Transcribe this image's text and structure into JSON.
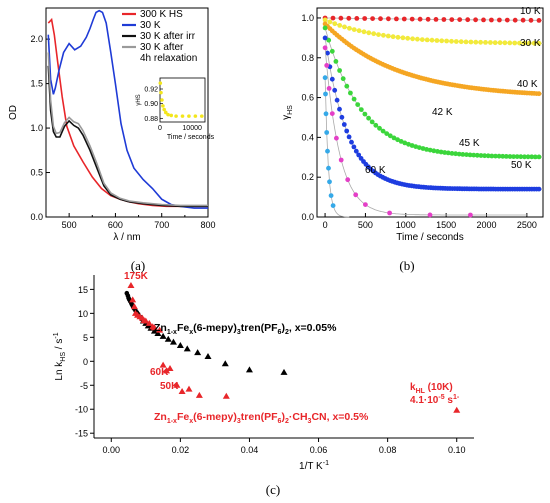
{
  "chart_data": [
    {
      "panel": "(a)",
      "type": "line",
      "xlabel": "λ / nm",
      "ylabel": "OD",
      "xlim": [
        450,
        800
      ],
      "ylim": [
        0,
        2.35
      ],
      "xticks": [
        "500",
        "600",
        "700",
        "800"
      ],
      "yticks": [
        "0.0",
        "0.5",
        "1.0",
        "1.5",
        "2.0"
      ],
      "legend_position": "top-right",
      "series": [
        {
          "name": "300 K HS",
          "color": "#e8262a",
          "x": [
            455,
            462,
            468,
            475,
            485,
            495,
            510,
            530,
            550,
            570,
            590,
            610,
            630,
            650,
            680,
            710,
            740,
            770,
            800
          ],
          "y": [
            2.18,
            2.22,
            2.05,
            1.75,
            1.35,
            1.02,
            0.8,
            0.62,
            0.45,
            0.32,
            0.24,
            0.2,
            0.17,
            0.15,
            0.13,
            0.12,
            0.12,
            0.12,
            0.12
          ]
        },
        {
          "name": "30 K",
          "color": "#1f3bd6",
          "x": [
            455,
            460,
            466,
            470,
            478,
            488,
            500,
            512,
            525,
            537,
            545,
            552,
            558,
            565,
            572,
            580,
            590,
            600,
            612,
            625,
            640,
            660,
            680,
            700,
            720,
            740,
            770,
            800
          ],
          "y": [
            2.05,
            1.55,
            1.38,
            1.45,
            1.65,
            1.85,
            1.95,
            1.88,
            1.92,
            2.02,
            2.12,
            2.22,
            2.3,
            2.32,
            2.3,
            2.18,
            1.85,
            1.5,
            1.05,
            0.75,
            0.55,
            0.42,
            0.32,
            0.2,
            0.14,
            0.12,
            0.1,
            0.1
          ]
        },
        {
          "name": "30 K after irr",
          "color": "#111111",
          "x": [
            455,
            460,
            466,
            472,
            480,
            490,
            500,
            510,
            520,
            530,
            545,
            560,
            575,
            590,
            610,
            630,
            660,
            700,
            740,
            800
          ],
          "y": [
            1.7,
            1.2,
            0.96,
            0.9,
            0.9,
            1.02,
            1.08,
            1.03,
            1.0,
            0.92,
            0.75,
            0.55,
            0.35,
            0.25,
            0.2,
            0.17,
            0.15,
            0.13,
            0.12,
            0.12
          ]
        },
        {
          "name": "30 K after 4h relaxation",
          "color": "#9a9a9a",
          "x": [
            455,
            460,
            466,
            472,
            480,
            490,
            500,
            510,
            520,
            530,
            545,
            560,
            575,
            590,
            610,
            630,
            660,
            700,
            740,
            800
          ],
          "y": [
            1.85,
            1.32,
            1.02,
            0.94,
            0.95,
            1.06,
            1.12,
            1.07,
            1.05,
            0.97,
            0.8,
            0.6,
            0.38,
            0.27,
            0.21,
            0.18,
            0.16,
            0.14,
            0.13,
            0.13
          ]
        }
      ],
      "inset": {
        "xlabel": "Time / seconds",
        "ylabel": "γHS",
        "xlim": [
          0,
          14000
        ],
        "ylim": [
          0.875,
          0.935
        ],
        "xticks": [
          "0",
          "10000"
        ],
        "yticks": [
          "0.88",
          "0.90",
          "0.92"
        ],
        "color": "#f3e61c",
        "x": [
          100,
          300,
          600,
          900,
          1300,
          1800,
          2500,
          3500,
          5000,
          7000,
          9000,
          11000,
          13000
        ],
        "y": [
          0.928,
          0.915,
          0.905,
          0.897,
          0.892,
          0.888,
          0.885,
          0.884,
          0.883,
          0.883,
          0.883,
          0.883,
          0.883
        ]
      }
    },
    {
      "panel": "(b)",
      "type": "scatter",
      "xlabel": "Time / seconds",
      "ylabel": "γHS",
      "xlim": [
        -100,
        2700
      ],
      "ylim": [
        0,
        1.05
      ],
      "xticks": [
        "0",
        "500",
        "1000",
        "1500",
        "2000",
        "2500"
      ],
      "yticks": [
        "0.0",
        "0.2",
        "0.4",
        "0.6",
        "0.8",
        "1.0"
      ],
      "series": [
        {
          "name": "10 K",
          "color": "#e8262a",
          "y0": 1.0,
          "yinf": 0.975,
          "tau": 4000,
          "n": 28
        },
        {
          "name": "30 K",
          "color": "#f2ea3a",
          "y0": 0.99,
          "yinf": 0.87,
          "tau": 700,
          "n": 45
        },
        {
          "name": "40 K",
          "color": "#f5a623",
          "y0": 0.97,
          "yinf": 0.6,
          "tau": 900,
          "n": 90
        },
        {
          "name": "42 K",
          "color": "#3bd63b",
          "y0": 0.95,
          "yinf": 0.3,
          "tau": 450,
          "n": 60
        },
        {
          "name": "45 K",
          "color": "#1e3de0",
          "y0": 0.9,
          "yinf": 0.14,
          "tau": 280,
          "n": 90
        },
        {
          "name": "50 K",
          "color": "#e43fc7",
          "y0": 0.85,
          "yinf": 0.01,
          "tau": 180,
          "n": 12
        },
        {
          "name": "60 K",
          "color": "#35a9e8",
          "y0": 0.7,
          "yinf": 0.0,
          "tau": 40,
          "n": 9
        }
      ]
    },
    {
      "panel": "(c)",
      "type": "scatter",
      "xlabel": "1/T K",
      "xlabel_sup": "-1",
      "ylabel": "Ln k",
      "ylabel_sub": "HS",
      "ylabel_unit": " / s",
      "ylabel_unit_sup": "-1",
      "xlim": [
        -0.005,
        0.105
      ],
      "ylim": [
        -16,
        18
      ],
      "xticks": [
        "0.00",
        "0.02",
        "0.04",
        "0.06",
        "0.08",
        "0.10"
      ],
      "yticks": [
        "-15",
        "-10",
        "-5",
        "0",
        "5",
        "10",
        "15"
      ],
      "black_series": {
        "color": "#000000",
        "x": [
          0.0045,
          0.0048,
          0.005,
          0.0052,
          0.0055,
          0.0058,
          0.006,
          0.0063,
          0.0066,
          0.007,
          0.0074,
          0.0078,
          0.0083,
          0.0088,
          0.0093,
          0.01,
          0.0107,
          0.0115,
          0.0125,
          0.0135,
          0.015,
          0.0165,
          0.018,
          0.02,
          0.022,
          0.025,
          0.028,
          0.033,
          0.04,
          0.05
        ],
        "y": [
          14.2,
          13.7,
          13.2,
          12.9,
          12.5,
          12.1,
          11.8,
          11.4,
          11.0,
          10.6,
          10.2,
          9.8,
          9.3,
          8.8,
          8.4,
          7.9,
          7.4,
          6.9,
          6.3,
          5.8,
          5.2,
          4.6,
          4.0,
          3.3,
          2.6,
          1.8,
          1.0,
          -0.5,
          -1.8,
          -2.3
        ]
      },
      "red_series": {
        "color": "#e8262a",
        "x": [
          0.0057,
          0.0062,
          0.0067,
          0.007,
          0.0076,
          0.0083,
          0.009,
          0.0095,
          0.01,
          0.011,
          0.012,
          0.0125,
          0.014,
          0.015,
          0.016,
          0.017,
          0.019,
          0.0205,
          0.0225,
          0.0255,
          0.0333,
          0.1
        ],
        "y": [
          15.8,
          12.8,
          11.4,
          10.0,
          9.6,
          9.3,
          9.0,
          8.5,
          8.4,
          7.9,
          7.2,
          7.0,
          6.5,
          -0.8,
          -2.0,
          -1.5,
          -5.0,
          -6.3,
          -5.8,
          -7.1,
          -7.3,
          -10.2
        ]
      },
      "labels": {
        "black_label": "Zn",
        "black_label_sub1": "1-x",
        "black_label_fe": "Fe",
        "black_label_sub2": "x",
        "black_label_mid": "(6-mepy)",
        "black_label_sub3": "3",
        "black_label_tren": "tren(PF",
        "black_label_sub4": "6",
        "black_label_close": ")",
        "black_label_sub5": "2",
        "black_label_end": ", x=0.05%",
        "red_label": "Zn",
        "red_label_sub1": "1-x",
        "red_label_fe": "Fe",
        "red_label_sub2": "x",
        "red_label_mid": "(6-mepy)",
        "red_label_sub3": "3",
        "red_label_tren": "tren(PF",
        "red_label_sub4": "6",
        "red_label_close": ")",
        "red_label_sub5": "2",
        "red_label_end": "·CH",
        "red_label_sub6": "3",
        "red_label_end2": "CN, x=0.5%",
        "t175": "175K",
        "t60": "60K",
        "t50": "50K",
        "khl": "k",
        "khl_sub": "HL",
        "khl_tail": " (10K)",
        "khl_val": "4.1·10",
        "khl_sup": "-5",
        "khl_unit": " s",
        "khl_unit_sup": "1-"
      }
    }
  ],
  "captions": {
    "a": "(a)",
    "b": "(b)",
    "c": "(c)"
  }
}
